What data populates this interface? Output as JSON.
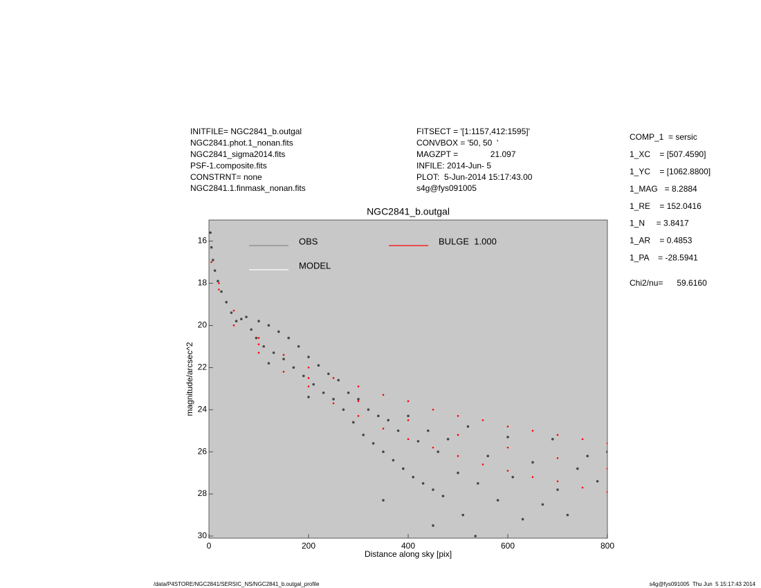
{
  "header": {
    "left": [
      "INITFILE= NGC2841_b.outgal",
      "NGC2841.phot.1_nonan.fits",
      "NGC2841_sigma2014.fits",
      "PSF-1.composite.fits",
      "CONSTRNT= none",
      "NGC2841.1.finmask_nonan.fits"
    ],
    "middle": [
      "FITSECT = '[1:1157,412:1595]'",
      "CONVBOX = '50, 50  '",
      "MAGZPT =              21.097",
      "INFILE: 2014-Jun- 5",
      "PLOT:  5-Jun-2014 15:17:43.00",
      "s4g@fys091005"
    ],
    "params": [
      "COMP_1  = sersic",
      "1_XC    = [507.4590]",
      "1_YC    = [1062.8800]",
      "1_MAG   = 8.2884",
      "1_RE    = 152.0416",
      "1_N     = 3.8417",
      "1_AR    = 0.4853",
      "1_PA    = -28.5941"
    ],
    "chi2": "Chi2/nu=      59.6160"
  },
  "footer": {
    "left": "/data/P4STORE/NGC2841/SERSIC_NS/NGC2841_b.outgal_profile",
    "right": "s4g@fys091005  Thu Jun  5 15:17:43 2014"
  },
  "chart_data": {
    "type": "scatter",
    "title": "NGC2841_b.outgal",
    "x_label": "Distance along sky [pix]",
    "y_label": "magnitude/arcsec^2",
    "xlim": [
      0,
      800
    ],
    "ylim": [
      30.1,
      15
    ],
    "xticks": [
      0,
      200,
      400,
      600,
      800
    ],
    "yticks": [
      16,
      18,
      20,
      22,
      24,
      26,
      28,
      30
    ],
    "background": "#c8c8c8",
    "series": [
      {
        "name": "OBS",
        "color": "#464646",
        "x": [
          3,
          5,
          8,
          12,
          18,
          25,
          35,
          45,
          55,
          65,
          75,
          85,
          95,
          100,
          110,
          120,
          130,
          140,
          150,
          160,
          170,
          180,
          190,
          200,
          210,
          220,
          230,
          240,
          250,
          260,
          270,
          280,
          290,
          300,
          310,
          320,
          330,
          340,
          350,
          360,
          370,
          380,
          390,
          400,
          410,
          420,
          430,
          440,
          450,
          460,
          470,
          480,
          500,
          510,
          520,
          540,
          560,
          580,
          600,
          610,
          630,
          650,
          670,
          690,
          700,
          720,
          740,
          760,
          780,
          800,
          535,
          450,
          350,
          200,
          120
        ],
        "values": [
          15.6,
          16.3,
          16.9,
          17.4,
          17.9,
          18.4,
          18.9,
          19.4,
          19.8,
          19.7,
          19.6,
          20.2,
          20.6,
          19.8,
          21.0,
          20.0,
          21.3,
          20.3,
          21.6,
          20.6,
          22.0,
          21.0,
          22.4,
          21.5,
          22.8,
          21.9,
          23.2,
          22.3,
          23.5,
          22.6,
          24.0,
          23.2,
          24.6,
          23.5,
          25.2,
          24.0,
          25.6,
          24.3,
          26.0,
          24.5,
          26.4,
          25.0,
          26.8,
          24.3,
          27.2,
          25.5,
          27.5,
          25.0,
          27.8,
          26.0,
          28.1,
          25.4,
          27.0,
          29.0,
          24.8,
          27.5,
          26.2,
          28.3,
          25.3,
          27.2,
          29.2,
          26.5,
          28.5,
          25.4,
          27.8,
          29.0,
          26.8,
          26.2,
          27.4,
          26.0,
          30.0,
          29.5,
          28.3,
          23.4,
          21.8
        ]
      },
      {
        "name": "MODEL",
        "color": "#ffffff",
        "x": [],
        "values": []
      },
      {
        "name": "BULGE  1.000",
        "color": "#ff0000",
        "x": [
          5,
          20,
          50,
          100,
          150,
          200,
          250,
          300,
          350,
          400,
          450,
          500,
          550,
          600,
          650,
          700,
          750,
          800,
          20,
          50,
          100,
          150,
          200,
          250,
          300,
          350,
          400,
          450,
          500,
          550,
          600,
          650,
          700,
          750,
          800,
          100,
          200,
          300,
          400,
          500,
          600,
          700,
          800
        ],
        "values": [
          17.0,
          18.0,
          19.3,
          20.6,
          21.4,
          22.0,
          22.5,
          22.9,
          23.3,
          23.6,
          24.0,
          24.3,
          24.5,
          24.8,
          25.0,
          25.2,
          25.4,
          25.6,
          18.3,
          20.0,
          21.3,
          22.2,
          22.9,
          23.7,
          24.3,
          24.9,
          25.4,
          25.8,
          26.2,
          26.6,
          26.9,
          27.2,
          27.4,
          27.7,
          27.9,
          20.9,
          22.5,
          23.6,
          24.5,
          25.2,
          25.8,
          26.3,
          26.8
        ]
      }
    ]
  }
}
